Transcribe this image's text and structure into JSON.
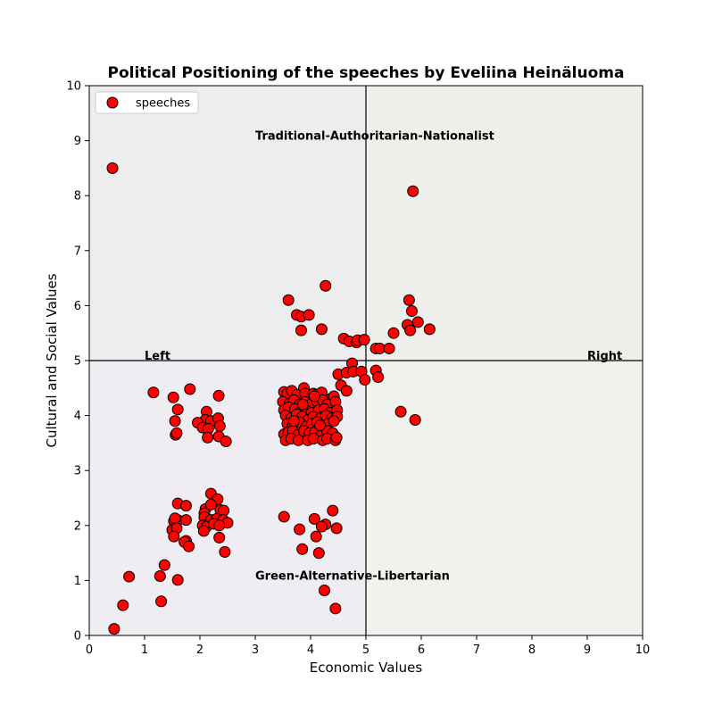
{
  "chart_data": {
    "type": "scatter",
    "title": "Political Positioning of the speeches by Eveliina Heinäluoma",
    "xlabel": "Economic Values",
    "ylabel": "Cultural and Social Values",
    "xlim": [
      0,
      10
    ],
    "ylim": [
      0,
      10
    ],
    "x_ticks": [
      "0",
      "1",
      "2",
      "3",
      "4",
      "5",
      "6",
      "7",
      "8",
      "9",
      "10"
    ],
    "y_ticks": [
      "0",
      "1",
      "2",
      "3",
      "4",
      "5",
      "6",
      "7",
      "8",
      "9",
      "10"
    ],
    "grid": false,
    "legend": {
      "position": "top-left",
      "entries": [
        "speeches"
      ]
    },
    "quadrants": [
      {
        "name": "top-left",
        "color": "#ededee"
      },
      {
        "name": "top-right",
        "color": "#eff0ec"
      },
      {
        "name": "bottom-left",
        "color": "#f0edf2"
      },
      {
        "name": "bottom-right",
        "color": "#f0f2ed"
      }
    ],
    "divider": {
      "x": 5,
      "y": 5
    },
    "annotations": [
      {
        "text": "Traditional-Authoritarian-Nationalist",
        "x": 3.0,
        "y": 9.0
      },
      {
        "text": "Green-Alternative-Libertarian",
        "x": 3.0,
        "y": 1.0
      },
      {
        "text": "Left",
        "x": 1.0,
        "y": 5.0
      },
      {
        "text": "Right",
        "x": 9.0,
        "y": 5.0
      }
    ],
    "series": [
      {
        "name": "speeches",
        "color": "#ff0000",
        "edge_color": "#000000",
        "points": [
          [
            0.42,
            8.5
          ],
          [
            5.85,
            8.08
          ],
          [
            3.6,
            6.1
          ],
          [
            4.27,
            6.36
          ],
          [
            3.75,
            5.83
          ],
          [
            3.83,
            5.8
          ],
          [
            3.97,
            5.83
          ],
          [
            3.83,
            5.55
          ],
          [
            4.2,
            5.57
          ],
          [
            5.78,
            6.1
          ],
          [
            5.83,
            5.9
          ],
          [
            5.94,
            5.7
          ],
          [
            5.75,
            5.65
          ],
          [
            5.8,
            5.55
          ],
          [
            6.15,
            5.57
          ],
          [
            4.6,
            5.4
          ],
          [
            4.7,
            5.35
          ],
          [
            4.83,
            5.33
          ],
          [
            4.85,
            5.37
          ],
          [
            4.97,
            5.38
          ],
          [
            5.5,
            5.5
          ],
          [
            5.18,
            5.22
          ],
          [
            5.25,
            5.22
          ],
          [
            5.42,
            5.22
          ],
          [
            4.75,
            4.95
          ],
          [
            4.5,
            4.75
          ],
          [
            4.65,
            4.78
          ],
          [
            4.77,
            4.8
          ],
          [
            4.92,
            4.8
          ],
          [
            5.18,
            4.82
          ],
          [
            5.22,
            4.7
          ],
          [
            4.55,
            4.55
          ],
          [
            4.65,
            4.45
          ],
          [
            4.98,
            4.65
          ],
          [
            5.63,
            4.07
          ],
          [
            5.89,
            3.92
          ],
          [
            1.16,
            4.42
          ],
          [
            1.52,
            4.33
          ],
          [
            1.82,
            4.48
          ],
          [
            2.34,
            4.36
          ],
          [
            1.6,
            4.11
          ],
          [
            1.55,
            3.9
          ],
          [
            1.56,
            3.65
          ],
          [
            1.58,
            3.68
          ],
          [
            2.12,
            4.07
          ],
          [
            2.1,
            3.92
          ],
          [
            2.2,
            3.9
          ],
          [
            2.33,
            3.95
          ],
          [
            1.96,
            3.87
          ],
          [
            2.05,
            3.78
          ],
          [
            2.15,
            3.76
          ],
          [
            2.36,
            3.81
          ],
          [
            2.14,
            3.6
          ],
          [
            2.34,
            3.62
          ],
          [
            2.47,
            3.53
          ],
          [
            3.52,
            4.43
          ],
          [
            3.58,
            4.4
          ],
          [
            3.66,
            4.45
          ],
          [
            3.76,
            4.38
          ],
          [
            3.88,
            4.5
          ],
          [
            3.9,
            4.4
          ],
          [
            4.05,
            4.4
          ],
          [
            4.1,
            4.38
          ],
          [
            4.2,
            4.42
          ],
          [
            4.35,
            4.3
          ],
          [
            4.42,
            4.35
          ],
          [
            3.5,
            4.25
          ],
          [
            3.62,
            4.22
          ],
          [
            3.7,
            4.28
          ],
          [
            3.8,
            4.2
          ],
          [
            3.9,
            4.25
          ],
          [
            4.0,
            4.2
          ],
          [
            4.12,
            4.25
          ],
          [
            4.22,
            4.28
          ],
          [
            4.3,
            4.2
          ],
          [
            4.45,
            4.25
          ],
          [
            3.52,
            4.1
          ],
          [
            3.6,
            4.15
          ],
          [
            3.72,
            4.12
          ],
          [
            3.82,
            4.08
          ],
          [
            3.92,
            4.1
          ],
          [
            4.02,
            4.05
          ],
          [
            4.15,
            4.1
          ],
          [
            4.25,
            4.12
          ],
          [
            4.35,
            4.05
          ],
          [
            4.48,
            4.1
          ],
          [
            3.55,
            4.0
          ],
          [
            3.65,
            3.95
          ],
          [
            3.75,
            4.02
          ],
          [
            3.85,
            3.98
          ],
          [
            3.95,
            3.92
          ],
          [
            4.05,
            3.98
          ],
          [
            4.18,
            3.95
          ],
          [
            4.28,
            4.0
          ],
          [
            4.38,
            3.95
          ],
          [
            4.48,
            3.98
          ],
          [
            3.58,
            3.85
          ],
          [
            3.68,
            3.82
          ],
          [
            3.8,
            3.88
          ],
          [
            3.92,
            3.8
          ],
          [
            4.02,
            3.85
          ],
          [
            4.12,
            3.88
          ],
          [
            4.22,
            3.8
          ],
          [
            4.32,
            3.85
          ],
          [
            4.42,
            3.9
          ],
          [
            3.52,
            3.66
          ],
          [
            3.6,
            3.7
          ],
          [
            3.68,
            3.72
          ],
          [
            3.78,
            3.65
          ],
          [
            3.88,
            3.72
          ],
          [
            3.98,
            3.68
          ],
          [
            4.08,
            3.7
          ],
          [
            4.2,
            3.65
          ],
          [
            4.3,
            3.72
          ],
          [
            4.4,
            3.68
          ],
          [
            3.55,
            3.55
          ],
          [
            3.65,
            3.58
          ],
          [
            3.78,
            3.55
          ],
          [
            3.95,
            3.55
          ],
          [
            4.05,
            3.58
          ],
          [
            4.22,
            3.55
          ],
          [
            4.3,
            3.58
          ],
          [
            4.45,
            3.55
          ],
          [
            4.47,
            3.6
          ],
          [
            3.86,
            4.2
          ],
          [
            4.07,
            4.35
          ],
          [
            4.17,
            3.82
          ],
          [
            3.7,
            3.9
          ],
          [
            1.53,
            2.08
          ],
          [
            1.6,
            2.1
          ],
          [
            1.75,
            2.1
          ],
          [
            1.6,
            2.4
          ],
          [
            1.75,
            2.36
          ],
          [
            2.2,
            2.58
          ],
          [
            2.32,
            2.48
          ],
          [
            2.1,
            2.3
          ],
          [
            2.2,
            2.38
          ],
          [
            2.08,
            2.22
          ],
          [
            2.37,
            2.28
          ],
          [
            2.43,
            2.27
          ],
          [
            1.55,
            2.13
          ],
          [
            2.08,
            2.15
          ],
          [
            2.2,
            2.1
          ],
          [
            2.3,
            2.12
          ],
          [
            2.42,
            2.1
          ],
          [
            2.5,
            2.05
          ],
          [
            2.05,
            2.0
          ],
          [
            2.12,
            1.98
          ],
          [
            2.25,
            2.03
          ],
          [
            2.35,
            2.0
          ],
          [
            1.5,
            1.92
          ],
          [
            1.58,
            1.95
          ],
          [
            2.07,
            1.9
          ],
          [
            1.53,
            1.8
          ],
          [
            1.75,
            1.72
          ],
          [
            1.72,
            1.7
          ],
          [
            1.8,
            1.62
          ],
          [
            2.35,
            1.78
          ],
          [
            2.45,
            1.52
          ],
          [
            3.52,
            2.16
          ],
          [
            4.4,
            2.27
          ],
          [
            4.07,
            2.12
          ],
          [
            4.27,
            2.02
          ],
          [
            4.2,
            1.98
          ],
          [
            3.8,
            1.93
          ],
          [
            4.47,
            1.95
          ],
          [
            4.1,
            1.8
          ],
          [
            3.85,
            1.57
          ],
          [
            4.15,
            1.5
          ],
          [
            1.36,
            1.28
          ],
          [
            1.28,
            1.08
          ],
          [
            0.72,
            1.07
          ],
          [
            1.6,
            1.01
          ],
          [
            0.61,
            0.55
          ],
          [
            1.3,
            0.62
          ],
          [
            4.25,
            0.82
          ],
          [
            4.45,
            0.49
          ],
          [
            0.45,
            0.12
          ]
        ]
      }
    ]
  }
}
